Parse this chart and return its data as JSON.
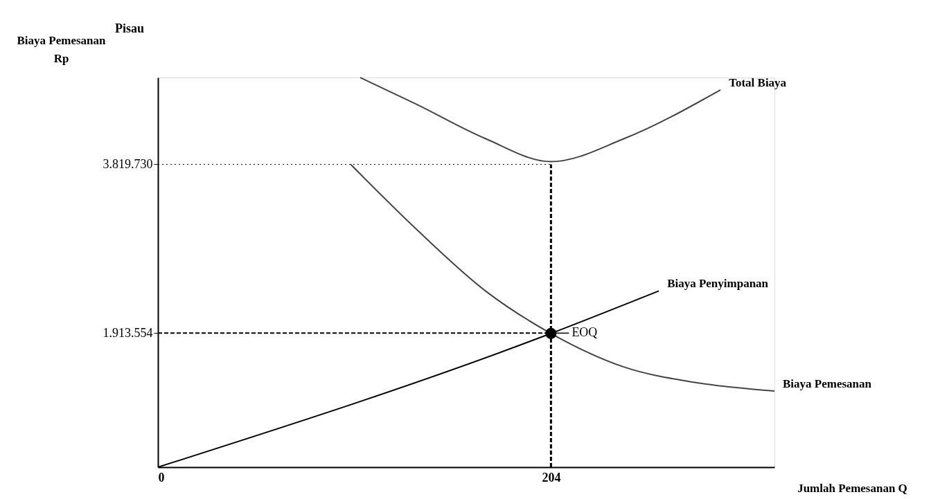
{
  "chart_data": {
    "type": "line",
    "title": "Pisau",
    "xlabel": "Jumlah Pemesanan Q",
    "ylabel": "Biaya Pemesanan Rp",
    "xlim": [
      0,
      320
    ],
    "ylim": [
      400000,
      4800000
    ],
    "xticks": [
      0,
      204
    ],
    "yticks": [
      {
        "value": 1913554,
        "label": "1.913.554"
      },
      {
        "value": 3819730,
        "label": "3.819.730"
      }
    ],
    "grid": false,
    "marker": "none",
    "line_style": "solid",
    "series": [
      {
        "name": "Total Biaya",
        "color": "#444444",
        "x": [
          105,
          134,
          170,
          204,
          242,
          292
        ],
        "values": [
          4800000,
          4500000,
          4110000,
          3850000,
          4110000,
          4660000
        ]
      },
      {
        "name": "Biaya Penyimpanan",
        "color": "#000000",
        "x": [
          0,
          204,
          260
        ],
        "values": [
          400000,
          1910000,
          2390000
        ]
      },
      {
        "name": "Biaya Pemesanan",
        "color": "#444444",
        "x": [
          100,
          134,
          170,
          204,
          242,
          278,
          320
        ],
        "values": [
          3820000,
          3090000,
          2390000,
          1910000,
          1530000,
          1360000,
          1260000
        ]
      },
      {
        "type": "scatter",
        "color": "#000000",
        "marker": "circle",
        "x": [
          204
        ],
        "values": [
          1910000
        ]
      }
    ],
    "ref_lines": [
      {
        "axis": "x",
        "value": 204,
        "line_style": "dashed",
        "color": "#000000"
      },
      {
        "axis": "y",
        "value": 1913554,
        "line_style": "dashed",
        "color": "#000000"
      },
      {
        "axis": "y",
        "value": 3819730,
        "line_style": "dotted",
        "color": "#000000"
      }
    ],
    "annotations": [
      {
        "text": "EOQ",
        "x": 204,
        "y": 1913554
      }
    ]
  }
}
